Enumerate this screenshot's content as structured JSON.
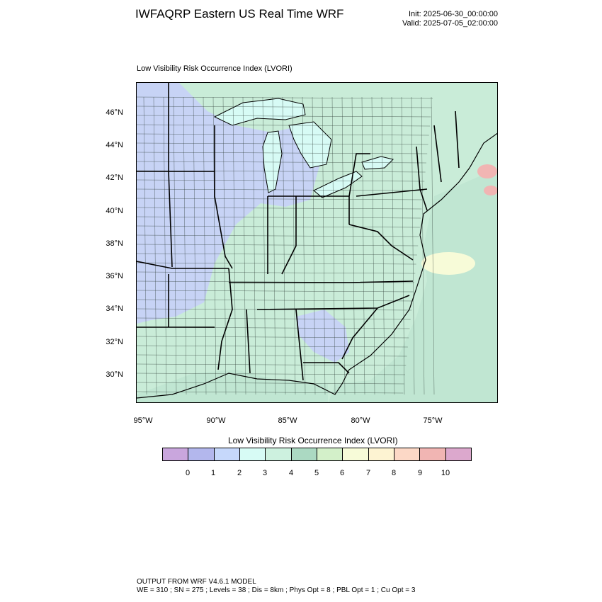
{
  "header": {
    "title": "IWFAQRP Eastern US Real Time WRF",
    "init": "Init: 2025-06-30_00:00:00",
    "valid": "Valid: 2025-07-05_02:00:00"
  },
  "panel": {
    "title": "Low Visibility Risk Occurrence Index   (LVORI)"
  },
  "axes": {
    "lat_ticks": [
      "46°N",
      "44°N",
      "42°N",
      "40°N",
      "38°N",
      "36°N",
      "34°N",
      "32°N",
      "30°N"
    ],
    "lon_ticks": [
      "95°W",
      "90°W",
      "85°W",
      "80°W",
      "75°W"
    ]
  },
  "legend": {
    "title": "Low Visibility Risk Occurrence Index  (LVORI)",
    "labels": [
      "0",
      "1",
      "2",
      "3",
      "4",
      "5",
      "6",
      "7",
      "8",
      "9",
      "10"
    ],
    "colors": [
      "#c9a6dd",
      "#b3b7ed",
      "#c6d8fb",
      "#d7fbf5",
      "#cdf1df",
      "#abd9c2",
      "#d3f0c9",
      "#f7fbd8",
      "#fdf3d2",
      "#fcd8c6",
      "#f1b5b3",
      "#dca8cd"
    ]
  },
  "map": {
    "land_color": "#c9ecd8",
    "water_color": "#c0e6d2",
    "low_color": "#c7d3f5",
    "border_color": "#000000"
  },
  "footer": {
    "line1": "OUTPUT FROM WRF V4.6.1 MODEL",
    "line2": "WE = 310 ; SN = 275 ; Levels = 38 ; Dis = 8km ; Phys Opt = 8 ; PBL Opt = 1 ; Cu Opt = 3"
  }
}
